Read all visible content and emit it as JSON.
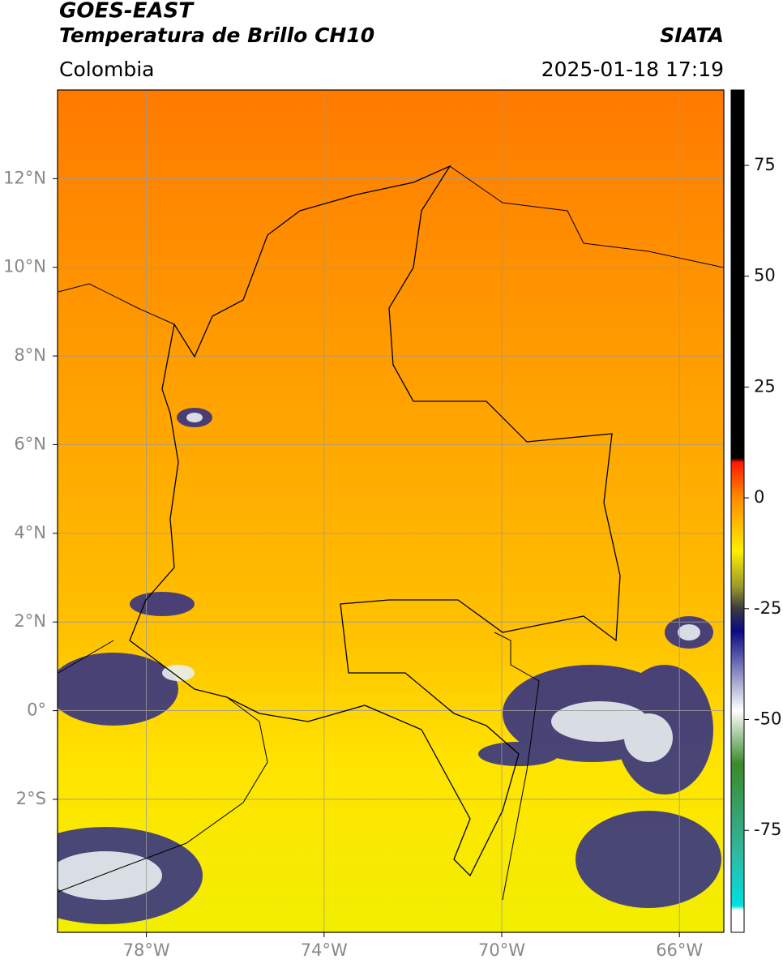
{
  "header": {
    "title_line1": "GOES-EAST",
    "title_line2": "Temperatura de Brillo CH10",
    "region": "Colombia",
    "source": "SIATA",
    "datetime": "2025-01-18 17:19"
  },
  "map": {
    "xlim": [
      -80,
      -65
    ],
    "ylim": [
      -5,
      14
    ],
    "grid": true,
    "xticks": [
      {
        "value": -78,
        "label": "78°W"
      },
      {
        "value": -74,
        "label": "74°W"
      },
      {
        "value": -70,
        "label": "70°W"
      },
      {
        "value": -66,
        "label": "66°W"
      }
    ],
    "yticks": [
      {
        "value": 12,
        "label": "12°N"
      },
      {
        "value": 10,
        "label": "10°N"
      },
      {
        "value": 8,
        "label": "8°N"
      },
      {
        "value": 6,
        "label": "6°N"
      },
      {
        "value": 4,
        "label": "4°N"
      },
      {
        "value": 2,
        "label": "2°N"
      },
      {
        "value": 0,
        "label": "0°"
      },
      {
        "value": -2,
        "label": "2°S"
      }
    ]
  },
  "colorbar": {
    "lim": [
      -98,
      92
    ],
    "ticks": [
      75,
      50,
      25,
      0,
      -25,
      -50,
      -75
    ],
    "colormap": [
      {
        "value": 92,
        "color": "#000000"
      },
      {
        "value": 9,
        "color": "#000000"
      },
      {
        "value": 8,
        "color": "#ff1a00"
      },
      {
        "value": 0,
        "color": "#ff8c00"
      },
      {
        "value": -12,
        "color": "#ffee00"
      },
      {
        "value": -20,
        "color": "#9a9a2a"
      },
      {
        "value": -25,
        "color": "#3a3a40"
      },
      {
        "value": -30,
        "color": "#0a0a80"
      },
      {
        "value": -48,
        "color": "#ffffff"
      },
      {
        "value": -60,
        "color": "#3a8a2a"
      },
      {
        "value": -80,
        "color": "#30b8a0"
      },
      {
        "value": -92,
        "color": "#00e0e0"
      },
      {
        "value": -93,
        "color": "#ffffff"
      },
      {
        "value": -98,
        "color": "#ffffff"
      }
    ]
  }
}
